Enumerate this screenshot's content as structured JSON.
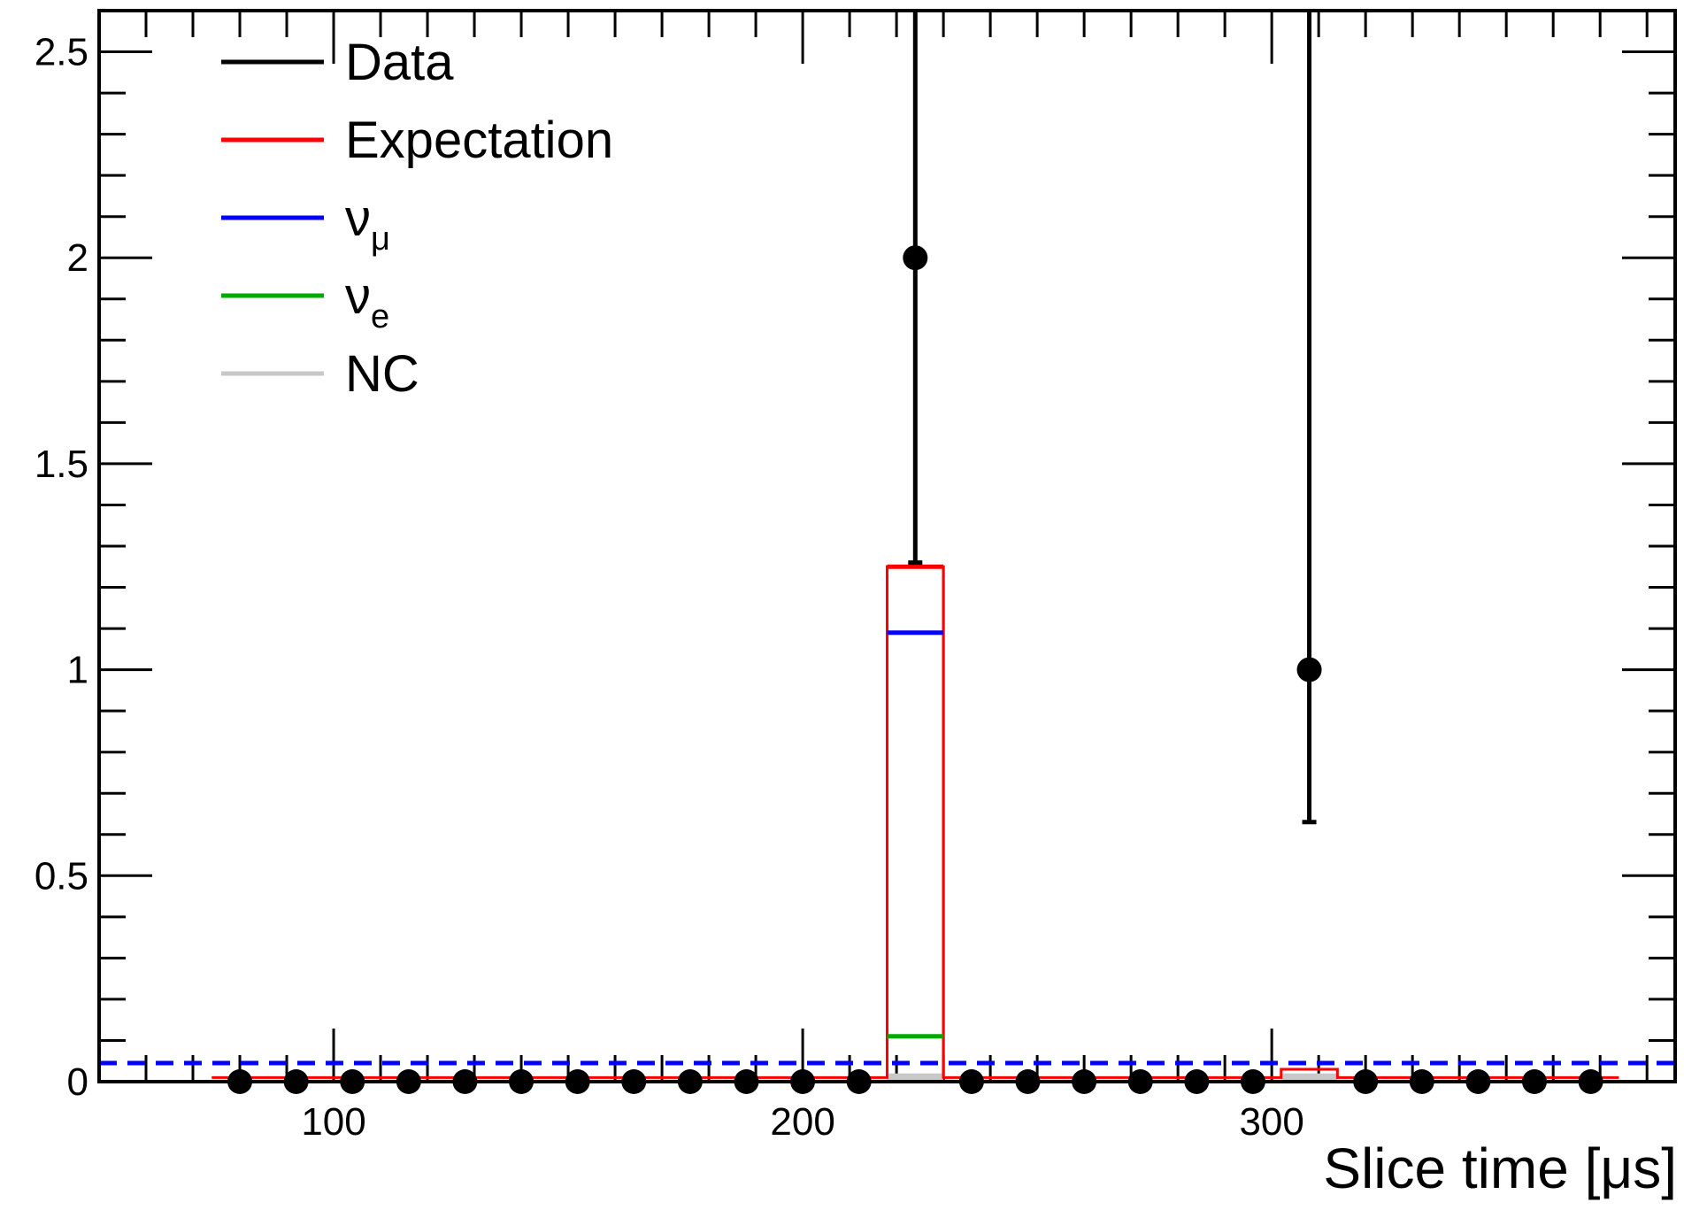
{
  "chart_data": {
    "type": "line",
    "title": "",
    "xlabel": "Slice time [μs]",
    "ylabel": "",
    "xlim": [
      50,
      386
    ],
    "ylim": [
      0,
      2.6
    ],
    "x_ticks": [
      100,
      200,
      300
    ],
    "x_tick_labels": [
      "100",
      "200",
      "300"
    ],
    "y_ticks": [
      0,
      0.5,
      1,
      1.5,
      2,
      2.5
    ],
    "y_tick_labels": [
      "0",
      "0.5",
      "1",
      "1.5",
      "2",
      "2.5"
    ],
    "grid": false,
    "legend_position": "top-left",
    "legend": [
      {
        "key": "data",
        "label": "Data",
        "sub": "",
        "color": "#000000"
      },
      {
        "key": "expectation",
        "label": "Expectation",
        "sub": "",
        "color": "#ff0000"
      },
      {
        "key": "numu",
        "label": "ν",
        "sub": "μ",
        "color": "#0000ff"
      },
      {
        "key": "nue",
        "label": "ν",
        "sub": "e",
        "color": "#00aa00"
      },
      {
        "key": "nc",
        "label": "NC",
        "sub": "",
        "color": "#c8c8c8"
      }
    ],
    "data_points": {
      "name": "Data",
      "color": "#000000",
      "points": [
        {
          "x": 80,
          "y": 0
        },
        {
          "x": 92,
          "y": 0
        },
        {
          "x": 104,
          "y": 0
        },
        {
          "x": 116,
          "y": 0
        },
        {
          "x": 128,
          "y": 0
        },
        {
          "x": 140,
          "y": 0
        },
        {
          "x": 152,
          "y": 0
        },
        {
          "x": 164,
          "y": 0
        },
        {
          "x": 176,
          "y": 0
        },
        {
          "x": 188,
          "y": 0
        },
        {
          "x": 200,
          "y": 0
        },
        {
          "x": 212,
          "y": 0
        },
        {
          "x": 224,
          "y": 2,
          "err_low": 1.26,
          "err_high": 2.6
        },
        {
          "x": 236,
          "y": 0
        },
        {
          "x": 248,
          "y": 0
        },
        {
          "x": 260,
          "y": 0
        },
        {
          "x": 272,
          "y": 0
        },
        {
          "x": 284,
          "y": 0
        },
        {
          "x": 296,
          "y": 0
        },
        {
          "x": 308,
          "y": 1,
          "err_low": 0.63,
          "err_high": 2.6
        },
        {
          "x": 320,
          "y": 0
        },
        {
          "x": 332,
          "y": 0
        },
        {
          "x": 344,
          "y": 0
        },
        {
          "x": 356,
          "y": 0
        },
        {
          "x": 368,
          "y": 0
        }
      ]
    },
    "expectation": {
      "name": "Expectation",
      "color": "#ff0000",
      "bins": [
        {
          "x0": 74,
          "x1": 218,
          "y": 0.01
        },
        {
          "x0": 218,
          "x1": 230,
          "y": 1.25
        },
        {
          "x0": 230,
          "x1": 302,
          "y": 0.01
        },
        {
          "x0": 302,
          "x1": 314,
          "y": 0.03
        },
        {
          "x0": 314,
          "x1": 374,
          "y": 0.01
        }
      ]
    },
    "numu": {
      "name": "ν_μ",
      "color": "#0000ff",
      "bins": [
        {
          "x0": 218,
          "x1": 230,
          "y": 1.09
        }
      ]
    },
    "nue": {
      "name": "ν_e",
      "color": "#00aa00",
      "bins": [
        {
          "x0": 218,
          "x1": 230,
          "y": 0.11
        }
      ]
    },
    "nc": {
      "name": "NC",
      "color": "#c8c8c8",
      "bins": [
        {
          "x0": 218,
          "x1": 230,
          "y": 0.02
        },
        {
          "x0": 302,
          "x1": 314,
          "y": 0.02
        }
      ]
    },
    "reference_line": {
      "y": 0.045,
      "color": "#0000ff",
      "style": "dashed"
    }
  }
}
